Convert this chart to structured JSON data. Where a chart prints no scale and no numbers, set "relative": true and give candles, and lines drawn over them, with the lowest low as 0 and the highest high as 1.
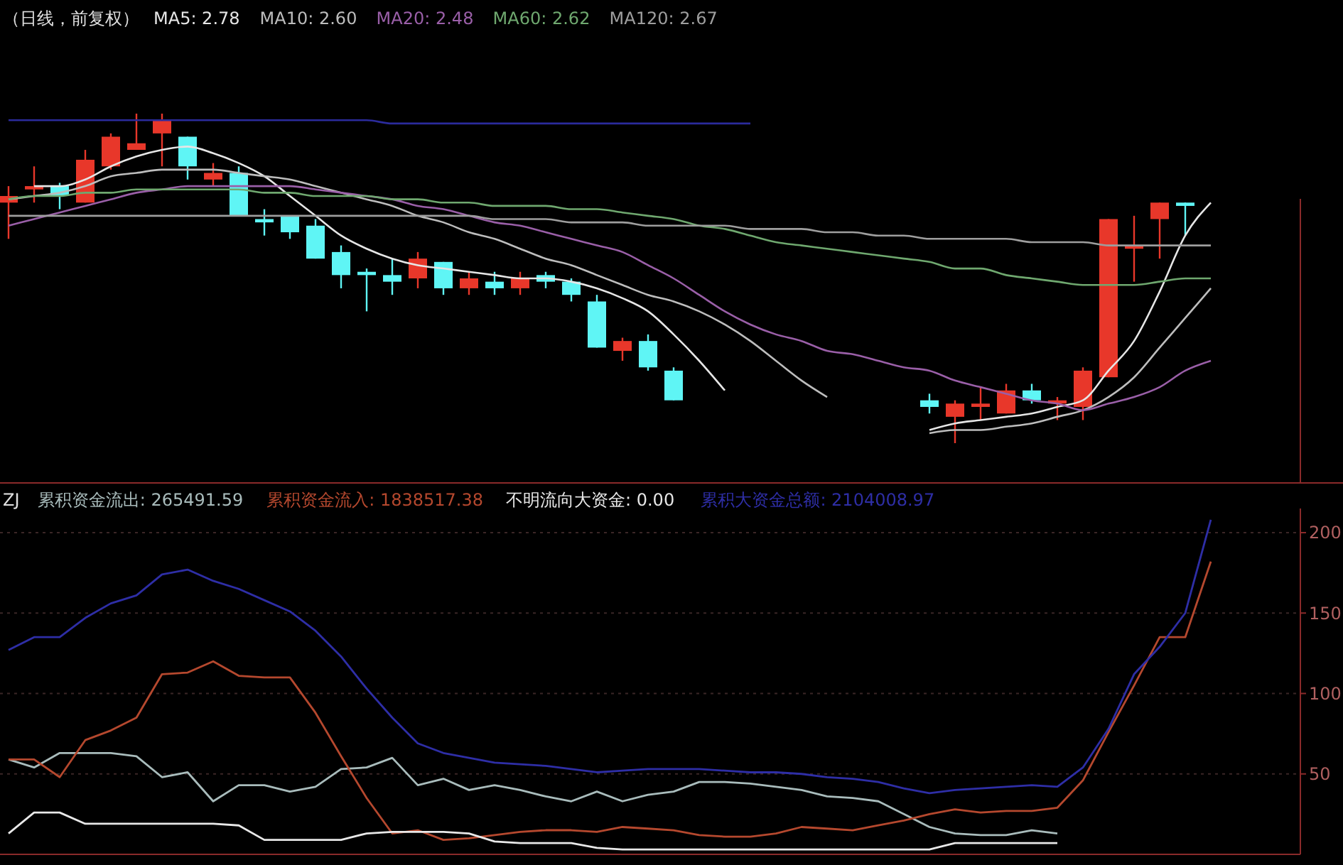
{
  "chart_data": [
    {
      "type": "candlestick",
      "title": "（日线，前复权）",
      "relative": true,
      "categories": [
        null,
        null,
        null,
        null,
        null,
        null,
        null,
        null,
        null,
        null,
        null,
        null,
        null,
        null,
        null,
        null,
        null,
        null,
        null,
        null,
        null,
        null,
        null,
        null,
        null,
        null,
        null,
        null,
        null,
        null,
        null,
        null,
        null,
        null,
        null,
        null,
        null,
        null,
        null,
        null,
        null,
        null,
        null,
        null,
        null,
        null,
        null,
        null
      ],
      "ohlc": [
        [
          0.73,
          0.78,
          0.62,
          0.75
        ],
        [
          0.77,
          0.84,
          0.73,
          0.78
        ],
        [
          0.78,
          0.79,
          0.71,
          0.75
        ],
        [
          0.73,
          0.89,
          0.73,
          0.86
        ],
        [
          0.84,
          0.94,
          0.83,
          0.93
        ],
        [
          0.89,
          1.0,
          0.89,
          0.91
        ],
        [
          0.94,
          1.0,
          0.84,
          0.98
        ],
        [
          0.93,
          0.93,
          0.8,
          0.84
        ],
        [
          0.8,
          0.85,
          0.78,
          0.82
        ],
        [
          0.82,
          0.84,
          0.69,
          0.69
        ],
        [
          0.68,
          0.71,
          0.63,
          0.67
        ],
        [
          0.69,
          0.69,
          0.62,
          0.64
        ],
        [
          0.66,
          0.68,
          0.56,
          0.56
        ],
        [
          0.58,
          0.6,
          0.47,
          0.51
        ],
        [
          0.52,
          0.53,
          0.4,
          0.51
        ],
        [
          0.51,
          0.56,
          0.45,
          0.49
        ],
        [
          0.5,
          0.58,
          0.47,
          0.56
        ],
        [
          0.55,
          0.55,
          0.45,
          0.47
        ],
        [
          0.47,
          0.52,
          0.45,
          0.5
        ],
        [
          0.49,
          0.52,
          0.45,
          0.47
        ],
        [
          0.47,
          0.52,
          0.45,
          0.5
        ],
        [
          0.51,
          0.52,
          0.47,
          0.49
        ],
        [
          0.49,
          0.5,
          0.43,
          0.45
        ],
        [
          0.43,
          0.45,
          0.29,
          0.29
        ],
        [
          0.28,
          0.32,
          0.25,
          0.31
        ],
        [
          0.31,
          0.33,
          0.22,
          0.23
        ],
        [
          0.22,
          0.23,
          0.13,
          0.13
        ],
        null,
        null,
        null,
        null,
        null,
        null,
        null,
        null,
        null,
        [
          0.13,
          0.15,
          0.09,
          0.11
        ],
        [
          0.08,
          0.13,
          0.0,
          0.12
        ],
        [
          0.11,
          0.17,
          0.07,
          0.12
        ],
        [
          0.09,
          0.18,
          0.09,
          0.16
        ],
        [
          0.16,
          0.18,
          0.12,
          0.13
        ],
        [
          0.12,
          0.14,
          0.07,
          0.13
        ],
        [
          0.11,
          0.23,
          0.07,
          0.22
        ],
        [
          0.2,
          0.68,
          0.2,
          0.68
        ],
        [
          0.59,
          0.69,
          0.49,
          0.6
        ],
        [
          0.68,
          0.73,
          0.56,
          0.73
        ],
        [
          0.73,
          0.73,
          0.63,
          0.72
        ],
        null
      ],
      "series": [
        {
          "name": "MA5: 2.78",
          "type": "line",
          "color": "#e6e6e6",
          "values": [
            null,
            0.78,
            0.78,
            0.8,
            0.84,
            0.87,
            0.89,
            0.9,
            0.88,
            0.85,
            0.81,
            0.75,
            0.69,
            0.63,
            0.59,
            0.56,
            0.54,
            0.53,
            0.52,
            0.51,
            0.5,
            0.5,
            0.49,
            0.47,
            0.44,
            0.4,
            0.33,
            0.25,
            0.16,
            null,
            null,
            null,
            null,
            null,
            null,
            null,
            0.04,
            0.06,
            0.07,
            0.08,
            0.09,
            0.11,
            0.13,
            0.22,
            0.31,
            0.46,
            0.63,
            0.73
          ]
        },
        {
          "name": "MA10: 2.60",
          "type": "line",
          "color": "#bdbdbd",
          "values": [
            0.74,
            0.75,
            0.76,
            0.78,
            0.81,
            0.82,
            0.83,
            0.83,
            0.83,
            0.82,
            0.81,
            0.8,
            0.78,
            0.76,
            0.74,
            0.72,
            0.69,
            0.67,
            0.64,
            0.62,
            0.59,
            0.56,
            0.54,
            0.51,
            0.48,
            0.45,
            0.43,
            0.4,
            0.36,
            0.31,
            0.25,
            0.19,
            0.14,
            null,
            null,
            null,
            0.03,
            0.04,
            0.04,
            0.05,
            0.06,
            0.08,
            0.1,
            0.14,
            0.2,
            0.29,
            0.38,
            0.47
          ]
        },
        {
          "name": "MA20: 2.48",
          "type": "line",
          "color": "#9a5fa8",
          "values": [
            0.66,
            0.68,
            0.7,
            0.72,
            0.74,
            0.76,
            0.77,
            0.78,
            0.78,
            0.78,
            0.78,
            0.78,
            0.77,
            0.76,
            0.75,
            0.74,
            0.72,
            0.71,
            0.69,
            0.67,
            0.66,
            0.64,
            0.62,
            0.6,
            0.58,
            0.54,
            0.5,
            0.45,
            0.4,
            0.36,
            0.33,
            0.31,
            0.28,
            0.27,
            0.25,
            0.23,
            0.22,
            0.19,
            0.17,
            0.15,
            0.13,
            0.12,
            0.1,
            0.12,
            0.14,
            0.17,
            0.22,
            0.25
          ]
        },
        {
          "name": "MA60: 2.62",
          "type": "line",
          "color": "#6fa86f",
          "values": [
            0.74,
            0.75,
            0.75,
            0.76,
            0.76,
            0.77,
            0.77,
            0.77,
            0.77,
            0.77,
            0.76,
            0.76,
            0.75,
            0.75,
            0.75,
            0.74,
            0.74,
            0.73,
            0.73,
            0.72,
            0.72,
            0.72,
            0.71,
            0.71,
            0.7,
            0.69,
            0.68,
            0.66,
            0.65,
            0.63,
            0.61,
            0.6,
            0.59,
            0.58,
            0.57,
            0.56,
            0.55,
            0.53,
            0.53,
            0.51,
            0.5,
            0.49,
            0.48,
            0.48,
            0.48,
            0.49,
            0.5,
            0.5
          ]
        },
        {
          "name": "MA120: 2.67",
          "type": "line",
          "color": "#9e9e9e",
          "values": [
            0.69,
            0.69,
            0.69,
            0.69,
            0.69,
            0.69,
            0.69,
            0.69,
            0.69,
            0.69,
            0.69,
            0.69,
            0.69,
            0.69,
            0.69,
            0.69,
            0.69,
            0.69,
            0.69,
            0.68,
            0.68,
            0.68,
            0.67,
            0.67,
            0.67,
            0.66,
            0.66,
            0.66,
            0.66,
            0.65,
            0.65,
            0.65,
            0.64,
            0.64,
            0.63,
            0.63,
            0.62,
            0.62,
            0.62,
            0.62,
            0.61,
            0.61,
            0.61,
            0.6,
            0.6,
            0.6,
            0.6,
            0.6
          ]
        },
        {
          "type": "line",
          "color": "#2b2b9c",
          "values": [
            0.98,
            0.98,
            0.98,
            0.98,
            0.98,
            0.98,
            0.98,
            0.98,
            0.98,
            0.98,
            0.98,
            0.98,
            0.98,
            0.98,
            0.98,
            0.97,
            0.97,
            0.97,
            0.97,
            0.97,
            0.97,
            0.97,
            0.97,
            0.97,
            0.97,
            0.97,
            0.97,
            0.97,
            0.97,
            0.97,
            null,
            null,
            null,
            null,
            null,
            null,
            null,
            null,
            null,
            null,
            null,
            null,
            null,
            null,
            null,
            null,
            null,
            null
          ]
        }
      ]
    },
    {
      "type": "line",
      "title": "ZJ",
      "grid": true,
      "ylim": [
        0,
        215
      ],
      "yticks": [
        50,
        100,
        150,
        200
      ],
      "categories": [
        null,
        null,
        null,
        null,
        null,
        null,
        null,
        null,
        null,
        null,
        null,
        null,
        null,
        null,
        null,
        null,
        null,
        null,
        null,
        null,
        null,
        null,
        null,
        null,
        null,
        null,
        null,
        null,
        null,
        null,
        null,
        null,
        null,
        null,
        null,
        null,
        null,
        null,
        null,
        null,
        null,
        null,
        null,
        null,
        null,
        null,
        null,
        null
      ],
      "series": [
        {
          "name": "累积资金流出: 265491.59",
          "color": "#a9bcbc",
          "values": [
            59,
            54,
            63,
            63,
            63,
            61,
            48,
            51,
            33,
            43,
            43,
            39,
            42,
            53,
            54,
            60,
            43,
            47,
            40,
            43,
            40,
            36,
            33,
            39,
            33,
            37,
            39,
            45,
            45,
            44,
            42,
            40,
            36,
            35,
            33,
            25,
            17,
            13,
            12,
            12,
            15,
            13,
            null,
            null,
            null,
            null,
            null,
            null
          ]
        },
        {
          "name": "累积资金流入: 1838517.38",
          "color": "#b5482e",
          "values": [
            59,
            59,
            48,
            71,
            77,
            85,
            112,
            113,
            120,
            111,
            110,
            110,
            88,
            61,
            35,
            13,
            15,
            9,
            10,
            12,
            14,
            15,
            15,
            14,
            17,
            16,
            15,
            12,
            11,
            11,
            13,
            17,
            16,
            15,
            18,
            21,
            25,
            28,
            26,
            27,
            27,
            29,
            46,
            76,
            105,
            135,
            135,
            182
          ]
        },
        {
          "name": "不明流向大资金: 0.00",
          "color": "#e8e8e8",
          "values": [
            13,
            26,
            26,
            19,
            19,
            19,
            19,
            19,
            19,
            18,
            9,
            9,
            9,
            9,
            13,
            14,
            14,
            14,
            13,
            8,
            7,
            7,
            7,
            4,
            3,
            3,
            3,
            3,
            3,
            3,
            3,
            3,
            3,
            3,
            3,
            3,
            3,
            7,
            7,
            7,
            7,
            7,
            null,
            null,
            null,
            null,
            null,
            null
          ]
        },
        {
          "name": "累积大资金总额: 2104008.97",
          "color": "#2e2ea6",
          "values": [
            127,
            135,
            135,
            147,
            156,
            161,
            174,
            177,
            170,
            165,
            158,
            151,
            139,
            123,
            103,
            85,
            69,
            63,
            60,
            57,
            56,
            55,
            53,
            51,
            52,
            53,
            53,
            53,
            52,
            51,
            51,
            50,
            48,
            47,
            45,
            41,
            38,
            40,
            41,
            42,
            43,
            42,
            54,
            78,
            112,
            129,
            150,
            208
          ]
        }
      ]
    }
  ]
}
